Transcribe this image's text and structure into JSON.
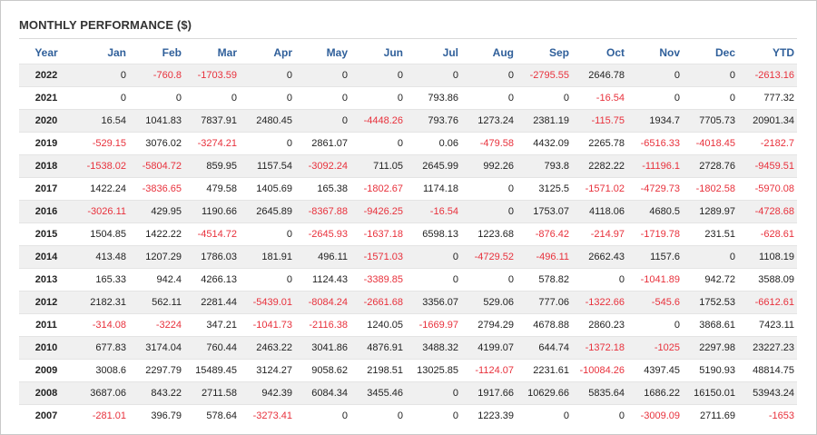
{
  "title": "MONTHLY PERFORMANCE ($)",
  "colors": {
    "header_text": "#2f5f9a",
    "negative": "#e8313c",
    "positive": "#222222",
    "stripe": "#f0f0f0"
  },
  "columns": [
    "Year",
    "Jan",
    "Feb",
    "Mar",
    "Apr",
    "May",
    "Jun",
    "Jul",
    "Aug",
    "Sep",
    "Oct",
    "Nov",
    "Dec",
    "YTD"
  ],
  "rows": [
    [
      "2022",
      "0",
      "-760.8",
      "-1703.59",
      "0",
      "0",
      "0",
      "0",
      "0",
      "-2795.55",
      "2646.78",
      "0",
      "0",
      "-2613.16"
    ],
    [
      "2021",
      "0",
      "0",
      "0",
      "0",
      "0",
      "0",
      "793.86",
      "0",
      "0",
      "-16.54",
      "0",
      "0",
      "777.32"
    ],
    [
      "2020",
      "16.54",
      "1041.83",
      "7837.91",
      "2480.45",
      "0",
      "-4448.26",
      "793.76",
      "1273.24",
      "2381.19",
      "-115.75",
      "1934.7",
      "7705.73",
      "20901.34"
    ],
    [
      "2019",
      "-529.15",
      "3076.02",
      "-3274.21",
      "0",
      "2861.07",
      "0",
      "0.06",
      "-479.58",
      "4432.09",
      "2265.78",
      "-6516.33",
      "-4018.45",
      "-2182.7"
    ],
    [
      "2018",
      "-1538.02",
      "-5804.72",
      "859.95",
      "1157.54",
      "-3092.24",
      "711.05",
      "2645.99",
      "992.26",
      "793.8",
      "2282.22",
      "-11196.1",
      "2728.76",
      "-9459.51"
    ],
    [
      "2017",
      "1422.24",
      "-3836.65",
      "479.58",
      "1405.69",
      "165.38",
      "-1802.67",
      "1174.18",
      "0",
      "3125.5",
      "-1571.02",
      "-4729.73",
      "-1802.58",
      "-5970.08"
    ],
    [
      "2016",
      "-3026.11",
      "429.95",
      "1190.66",
      "2645.89",
      "-8367.88",
      "-9426.25",
      "-16.54",
      "0",
      "1753.07",
      "4118.06",
      "4680.5",
      "1289.97",
      "-4728.68"
    ],
    [
      "2015",
      "1504.85",
      "1422.22",
      "-4514.72",
      "0",
      "-2645.93",
      "-1637.18",
      "6598.13",
      "1223.68",
      "-876.42",
      "-214.97",
      "-1719.78",
      "231.51",
      "-628.61"
    ],
    [
      "2014",
      "413.48",
      "1207.29",
      "1786.03",
      "181.91",
      "496.11",
      "-1571.03",
      "0",
      "-4729.52",
      "-496.11",
      "2662.43",
      "1157.6",
      "0",
      "1108.19"
    ],
    [
      "2013",
      "165.33",
      "942.4",
      "4266.13",
      "0",
      "1124.43",
      "-3389.85",
      "0",
      "0",
      "578.82",
      "0",
      "-1041.89",
      "942.72",
      "3588.09"
    ],
    [
      "2012",
      "2182.31",
      "562.11",
      "2281.44",
      "-5439.01",
      "-8084.24",
      "-2661.68",
      "3356.07",
      "529.06",
      "777.06",
      "-1322.66",
      "-545.6",
      "1752.53",
      "-6612.61"
    ],
    [
      "2011",
      "-314.08",
      "-3224",
      "347.21",
      "-1041.73",
      "-2116.38",
      "1240.05",
      "-1669.97",
      "2794.29",
      "4678.88",
      "2860.23",
      "0",
      "3868.61",
      "7423.11"
    ],
    [
      "2010",
      "677.83",
      "3174.04",
      "760.44",
      "2463.22",
      "3041.86",
      "4876.91",
      "3488.32",
      "4199.07",
      "644.74",
      "-1372.18",
      "-1025",
      "2297.98",
      "23227.23"
    ],
    [
      "2009",
      "3008.6",
      "2297.79",
      "15489.45",
      "3124.27",
      "9058.62",
      "2198.51",
      "13025.85",
      "-1124.07",
      "2231.61",
      "-10084.26",
      "4397.45",
      "5190.93",
      "48814.75"
    ],
    [
      "2008",
      "3687.06",
      "843.22",
      "2711.58",
      "942.39",
      "6084.34",
      "3455.46",
      "0",
      "1917.66",
      "10629.66",
      "5835.64",
      "1686.22",
      "16150.01",
      "53943.24"
    ],
    [
      "2007",
      "-281.01",
      "396.79",
      "578.64",
      "-3273.41",
      "0",
      "0",
      "0",
      "1223.39",
      "0",
      "0",
      "-3009.09",
      "2711.69",
      "-1653"
    ]
  ]
}
